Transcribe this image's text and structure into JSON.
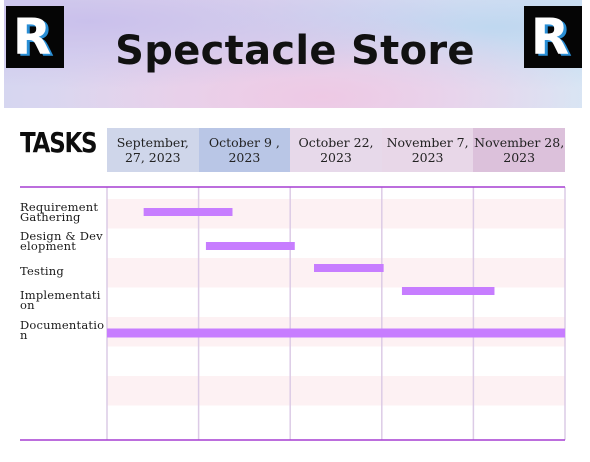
{
  "banner": {
    "title": "Spectacle Store",
    "logo_letter": "R"
  },
  "colors": {
    "bar": "#c77dff",
    "grid_line": "#dccbe6",
    "frame_line": "#a63fd2",
    "stripe": "#fdf1f3",
    "header_cells": [
      "#cfd6ea",
      "#b9c6e6",
      "#e7d9ea",
      "#e8d7e8",
      "#dcc1db"
    ]
  },
  "icons": [
    "r-logo-icon",
    "r-logo-icon"
  ],
  "chart_data": {
    "type": "gantt",
    "title": "",
    "row_header": "TASKS",
    "columns": [
      "September, 27, 2023",
      "October 9 , 2023",
      "October 22, 2023",
      "November 7, 2023",
      "November 28, 2023"
    ],
    "columns_display": [
      [
        "September,",
        "27, 2023"
      ],
      [
        "October 9 ,",
        "2023"
      ],
      [
        "October 22,",
        "2023"
      ],
      [
        "November 7,",
        "2023"
      ],
      [
        "November 28,",
        "2023"
      ]
    ],
    "tasks": [
      {
        "name": "Requirement Gathering",
        "start": 0.4,
        "end": 1.37
      },
      {
        "name": "Design & Development",
        "start": 1.08,
        "end": 2.05
      },
      {
        "name": "Testing",
        "start": 2.26,
        "end": 3.02
      },
      {
        "name": "Implementation",
        "start": 3.22,
        "end": 4.23
      },
      {
        "name": "Documentation",
        "start": 0.0,
        "end": 5.0
      }
    ],
    "axis_unit": "column index (0 = start of first date column, 5 = end of last)",
    "grid": true,
    "legend": "none"
  }
}
